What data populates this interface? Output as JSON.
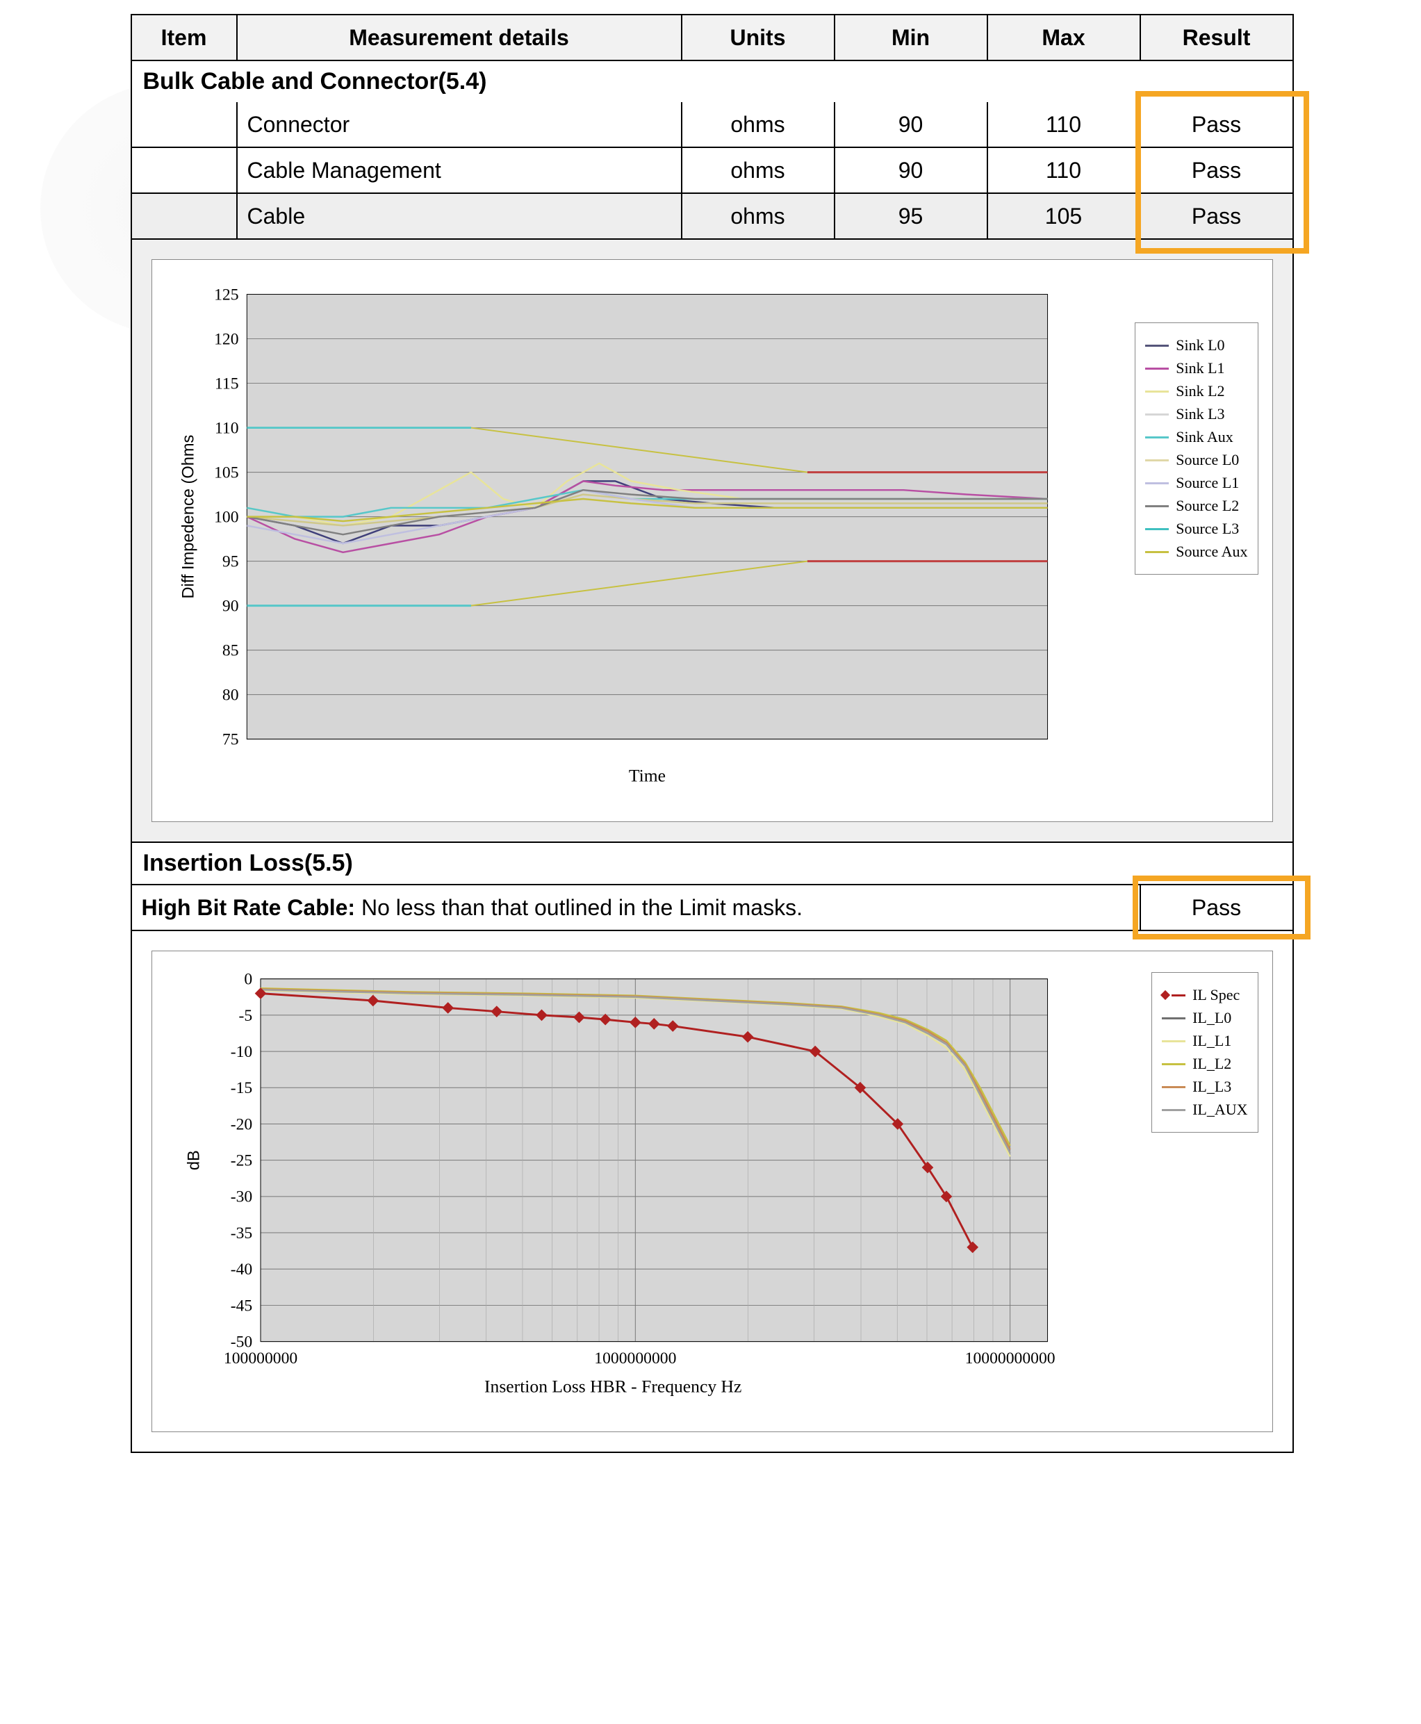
{
  "table": {
    "headers": [
      "Item",
      "Measurement details",
      "Units",
      "Min",
      "Max",
      "Result"
    ],
    "section1_title": "Bulk Cable and Connector(5.4)",
    "rows": [
      {
        "item": "",
        "detail": "Connector",
        "units": "ohms",
        "min": "90",
        "max": "110",
        "result": "Pass"
      },
      {
        "item": "",
        "detail": "Cable Management",
        "units": "ohms",
        "min": "90",
        "max": "110",
        "result": "Pass"
      },
      {
        "item": "",
        "detail": "Cable",
        "units": "ohms",
        "min": "95",
        "max": "105",
        "result": "Pass",
        "alt": true
      }
    ],
    "section2_title": "Insertion Loss(5.5)",
    "hbr_label": "High Bit Rate Cable:",
    "hbr_text": " No less than that outlined in the Limit masks.",
    "hbr_result": "Pass"
  },
  "highlight_color": "#f5a623",
  "chart1": {
    "type": "line",
    "ylabel": "Diff Impedence (Ohms",
    "xlabel": "Time",
    "ylim": [
      75,
      125
    ],
    "ytick_step": 5,
    "xlim": [
      0,
      100
    ],
    "plot_bg": "#d6d6d6",
    "grid_color": "#777777",
    "legend_series": [
      {
        "name": "Sink L0",
        "color": "#55557a"
      },
      {
        "name": "Sink L1",
        "color": "#b84fa3"
      },
      {
        "name": "Sink L2",
        "color": "#e8e49a"
      },
      {
        "name": "Sink L3",
        "color": "#d6d6d6"
      },
      {
        "name": "Sink Aux",
        "color": "#57c7c9"
      },
      {
        "name": "Source L0",
        "color": "#e0d8a8"
      },
      {
        "name": "Source L1",
        "color": "#bfbfe0"
      },
      {
        "name": "Source L2",
        "color": "#808080"
      },
      {
        "name": "Source L3",
        "color": "#3fc0c0"
      },
      {
        "name": "Source Aux",
        "color": "#c7c141"
      }
    ],
    "limit_lines": {
      "upper_conn": {
        "y": 110,
        "color": "#57c7c9",
        "x_range": [
          0,
          28
        ]
      },
      "lower_conn": {
        "y": 90,
        "color": "#57c7c9",
        "x_range": [
          0,
          28
        ]
      },
      "upper_cable": {
        "y": 105,
        "color": "#c04040",
        "x_range": [
          70,
          100
        ]
      },
      "lower_cable": {
        "y": 95,
        "color": "#c04040",
        "x_range": [
          70,
          100
        ]
      },
      "upper_trans_from": [
        28,
        110
      ],
      "upper_trans_to": [
        70,
        105
      ],
      "upper_trans_color": "#c7c141",
      "lower_trans_from": [
        28,
        90
      ],
      "lower_trans_to": [
        70,
        95
      ],
      "lower_trans_color": "#c7c141"
    },
    "traces": [
      {
        "name": "Sink L0",
        "color": "#3f3f7a",
        "pts": [
          [
            0,
            100
          ],
          [
            6,
            99
          ],
          [
            12,
            97
          ],
          [
            18,
            99
          ],
          [
            24,
            99
          ],
          [
            30,
            100
          ],
          [
            36,
            101
          ],
          [
            42,
            104
          ],
          [
            46,
            104
          ],
          [
            52,
            102
          ],
          [
            58,
            101.5
          ],
          [
            66,
            101
          ],
          [
            74,
            101
          ],
          [
            82,
            101
          ],
          [
            90,
            101
          ],
          [
            100,
            101
          ]
        ]
      },
      {
        "name": "Sink L1",
        "color": "#b84fa3",
        "pts": [
          [
            0,
            100
          ],
          [
            6,
            97.5
          ],
          [
            12,
            96
          ],
          [
            18,
            97
          ],
          [
            24,
            98
          ],
          [
            30,
            100
          ],
          [
            36,
            101
          ],
          [
            42,
            104
          ],
          [
            46,
            103.5
          ],
          [
            52,
            103
          ],
          [
            58,
            103
          ],
          [
            66,
            103
          ],
          [
            74,
            103
          ],
          [
            82,
            103
          ],
          [
            90,
            102.5
          ],
          [
            100,
            102
          ]
        ]
      },
      {
        "name": "Sink L2",
        "color": "#e8e49a",
        "pts": [
          [
            0,
            101
          ],
          [
            6,
            100
          ],
          [
            12,
            99
          ],
          [
            18,
            100
          ],
          [
            24,
            103
          ],
          [
            28,
            105
          ],
          [
            32,
            102
          ],
          [
            36,
            101
          ],
          [
            40,
            104
          ],
          [
            44,
            106
          ],
          [
            48,
            104
          ],
          [
            54,
            103
          ],
          [
            62,
            102
          ],
          [
            70,
            102
          ],
          [
            80,
            102
          ],
          [
            90,
            102
          ],
          [
            100,
            102
          ]
        ]
      },
      {
        "name": "Sink Aux",
        "color": "#57c7c9",
        "pts": [
          [
            0,
            101
          ],
          [
            6,
            100
          ],
          [
            12,
            100
          ],
          [
            18,
            101
          ],
          [
            24,
            101
          ],
          [
            30,
            101
          ],
          [
            36,
            102
          ],
          [
            42,
            103
          ],
          [
            48,
            102
          ],
          [
            56,
            102
          ],
          [
            66,
            102
          ],
          [
            76,
            102
          ],
          [
            88,
            102
          ],
          [
            100,
            102
          ]
        ]
      },
      {
        "name": "Source L0",
        "color": "#cfc88a",
        "pts": [
          [
            0,
            100
          ],
          [
            6,
            99.5
          ],
          [
            12,
            99
          ],
          [
            18,
            99.5
          ],
          [
            24,
            100
          ],
          [
            30,
            100.5
          ],
          [
            36,
            101
          ],
          [
            42,
            102.5
          ],
          [
            48,
            102
          ],
          [
            56,
            101.5
          ],
          [
            66,
            101.5
          ],
          [
            76,
            101.5
          ],
          [
            88,
            101.5
          ],
          [
            100,
            101.5
          ]
        ]
      },
      {
        "name": "Source L1",
        "color": "#bfbfe0",
        "pts": [
          [
            0,
            99
          ],
          [
            6,
            98
          ],
          [
            12,
            97
          ],
          [
            18,
            98
          ],
          [
            24,
            99
          ],
          [
            30,
            100
          ],
          [
            36,
            101
          ],
          [
            42,
            103
          ],
          [
            48,
            102
          ],
          [
            56,
            101
          ],
          [
            66,
            101
          ],
          [
            76,
            101
          ],
          [
            88,
            101
          ],
          [
            100,
            101
          ]
        ]
      },
      {
        "name": "Source L2",
        "color": "#808080",
        "pts": [
          [
            0,
            100
          ],
          [
            6,
            99
          ],
          [
            12,
            98
          ],
          [
            18,
            99
          ],
          [
            24,
            100
          ],
          [
            30,
            100.5
          ],
          [
            36,
            101
          ],
          [
            42,
            103
          ],
          [
            48,
            102.5
          ],
          [
            56,
            102
          ],
          [
            66,
            102
          ],
          [
            76,
            102
          ],
          [
            88,
            102
          ],
          [
            100,
            102
          ]
        ]
      },
      {
        "name": "Source Aux",
        "color": "#c7c141",
        "pts": [
          [
            0,
            100
          ],
          [
            6,
            100
          ],
          [
            12,
            99.5
          ],
          [
            18,
            100
          ],
          [
            24,
            100.5
          ],
          [
            30,
            101
          ],
          [
            36,
            101.5
          ],
          [
            42,
            102
          ],
          [
            48,
            101.5
          ],
          [
            56,
            101
          ],
          [
            66,
            101
          ],
          [
            76,
            101
          ],
          [
            88,
            101
          ],
          [
            100,
            101
          ]
        ]
      }
    ]
  },
  "chart2": {
    "type": "line-logx",
    "ylabel": "dB",
    "xlabel": "Insertion Loss  HBR - Frequency Hz",
    "ylim": [
      -50,
      0
    ],
    "ytick_step": 5,
    "xlim_log": [
      8,
      10.1
    ],
    "xticks": [
      {
        "logv": 8,
        "label": "100000000"
      },
      {
        "logv": 9,
        "label": "1000000000"
      },
      {
        "logv": 10,
        "label": "10000000000"
      }
    ],
    "plot_bg": "#d6d6d6",
    "grid_color": "#777777",
    "legend_series": [
      {
        "name": "IL Spec",
        "color": "#b02020",
        "marker": true
      },
      {
        "name": "IL_L0",
        "color": "#707070"
      },
      {
        "name": "IL_L1",
        "color": "#e8e49a"
      },
      {
        "name": "IL_L2",
        "color": "#c7c141"
      },
      {
        "name": "IL_L3",
        "color": "#c98b56"
      },
      {
        "name": "IL_AUX",
        "color": "#a0a0a0"
      }
    ],
    "spec": {
      "color": "#b02020",
      "pts": [
        [
          8.0,
          -2
        ],
        [
          8.3,
          -3
        ],
        [
          8.5,
          -4
        ],
        [
          8.63,
          -4.5
        ],
        [
          8.75,
          -5
        ],
        [
          8.85,
          -5.3
        ],
        [
          8.92,
          -5.6
        ],
        [
          9.0,
          -6
        ],
        [
          9.05,
          -6.2
        ],
        [
          9.1,
          -6.5
        ],
        [
          9.3,
          -8
        ],
        [
          9.48,
          -10
        ],
        [
          9.6,
          -15
        ],
        [
          9.7,
          -20
        ],
        [
          9.78,
          -26
        ],
        [
          9.83,
          -30
        ],
        [
          9.9,
          -37
        ]
      ]
    },
    "traces": [
      {
        "name": "IL_L0",
        "color": "#707070",
        "pts": [
          [
            8.0,
            -1.5
          ],
          [
            8.4,
            -2
          ],
          [
            8.7,
            -2.2
          ],
          [
            9.0,
            -2.5
          ],
          [
            9.2,
            -3
          ],
          [
            9.4,
            -3.5
          ],
          [
            9.55,
            -4
          ],
          [
            9.65,
            -5
          ],
          [
            9.72,
            -6
          ],
          [
            9.78,
            -7.5
          ],
          [
            9.83,
            -9
          ],
          [
            9.88,
            -12
          ],
          [
            9.92,
            -16
          ],
          [
            9.95,
            -19
          ],
          [
            9.98,
            -22
          ],
          [
            10.0,
            -24
          ]
        ]
      },
      {
        "name": "IL_L1",
        "color": "#e8e49a",
        "pts": [
          [
            8.0,
            -1.6
          ],
          [
            8.4,
            -2.1
          ],
          [
            8.7,
            -2.3
          ],
          [
            9.0,
            -2.6
          ],
          [
            9.2,
            -3.1
          ],
          [
            9.4,
            -3.6
          ],
          [
            9.55,
            -4.1
          ],
          [
            9.65,
            -5.2
          ],
          [
            9.72,
            -6.2
          ],
          [
            9.78,
            -7.8
          ],
          [
            9.83,
            -9.5
          ],
          [
            9.88,
            -12.5
          ],
          [
            9.92,
            -16.5
          ],
          [
            9.95,
            -19.5
          ],
          [
            9.98,
            -22.5
          ],
          [
            10.0,
            -24.5
          ]
        ]
      },
      {
        "name": "IL_L2",
        "color": "#c7c141",
        "pts": [
          [
            8.0,
            -1.3
          ],
          [
            8.4,
            -1.8
          ],
          [
            8.7,
            -2.0
          ],
          [
            9.0,
            -2.3
          ],
          [
            9.2,
            -2.8
          ],
          [
            9.4,
            -3.3
          ],
          [
            9.55,
            -3.8
          ],
          [
            9.65,
            -4.7
          ],
          [
            9.72,
            -5.6
          ],
          [
            9.78,
            -7.0
          ],
          [
            9.83,
            -8.5
          ],
          [
            9.88,
            -11.5
          ],
          [
            9.92,
            -15
          ],
          [
            9.95,
            -18
          ],
          [
            9.98,
            -21
          ],
          [
            10.0,
            -23
          ]
        ]
      },
      {
        "name": "IL_L3",
        "color": "#c98b56",
        "pts": [
          [
            8.0,
            -1.4
          ],
          [
            8.4,
            -1.9
          ],
          [
            8.7,
            -2.1
          ],
          [
            9.0,
            -2.4
          ],
          [
            9.2,
            -2.9
          ],
          [
            9.4,
            -3.4
          ],
          [
            9.55,
            -3.9
          ],
          [
            9.65,
            -4.9
          ],
          [
            9.72,
            -5.8
          ],
          [
            9.78,
            -7.2
          ],
          [
            9.83,
            -8.8
          ],
          [
            9.88,
            -11.8
          ],
          [
            9.92,
            -15.5
          ],
          [
            9.95,
            -18.5
          ],
          [
            9.98,
            -21.5
          ],
          [
            10.0,
            -23.5
          ]
        ]
      },
      {
        "name": "IL_AUX",
        "color": "#a0a0a0",
        "pts": [
          [
            8.0,
            -1.5
          ],
          [
            8.4,
            -2.0
          ],
          [
            8.7,
            -2.2
          ],
          [
            9.0,
            -2.5
          ],
          [
            9.2,
            -3.0
          ],
          [
            9.4,
            -3.5
          ],
          [
            9.55,
            -4.0
          ],
          [
            9.65,
            -5.0
          ],
          [
            9.72,
            -6.0
          ],
          [
            9.78,
            -7.5
          ],
          [
            9.83,
            -9.0
          ],
          [
            9.88,
            -12
          ],
          [
            9.92,
            -16
          ],
          [
            9.95,
            -19
          ],
          [
            9.98,
            -22
          ],
          [
            10.0,
            -24
          ]
        ]
      }
    ]
  }
}
